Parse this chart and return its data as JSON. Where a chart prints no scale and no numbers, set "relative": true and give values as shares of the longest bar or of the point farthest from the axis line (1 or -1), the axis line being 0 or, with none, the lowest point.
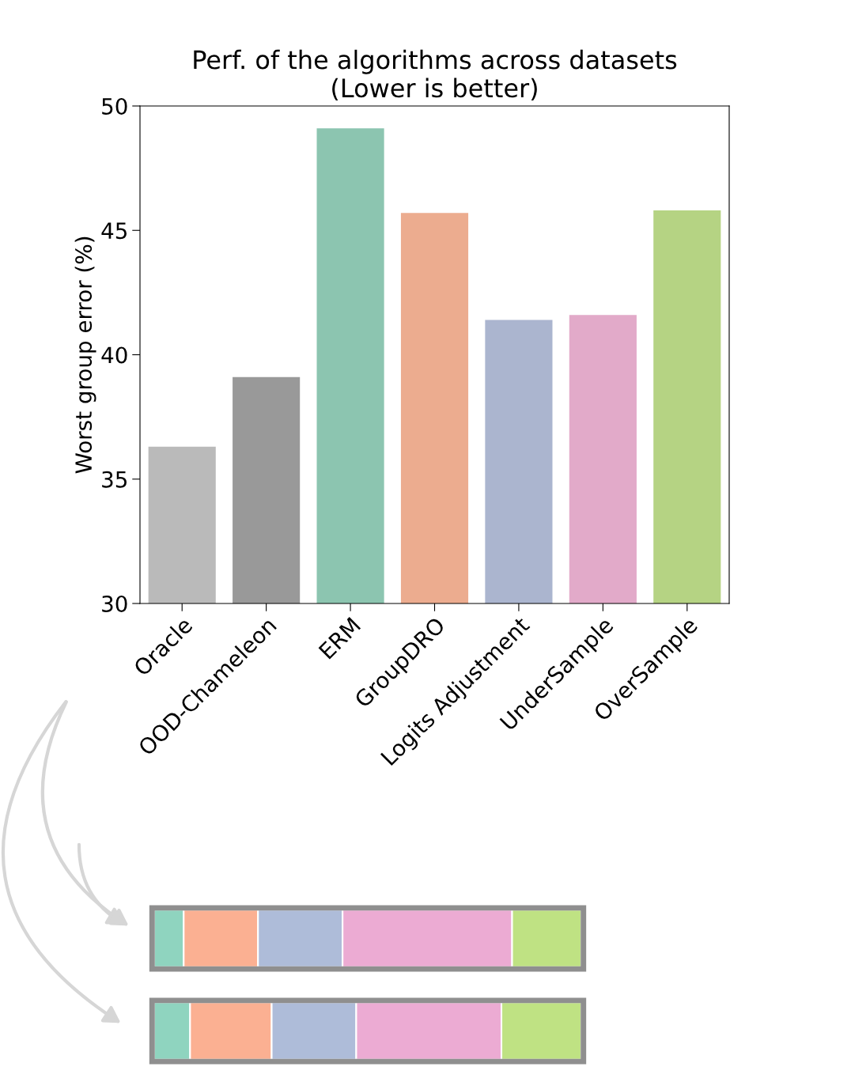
{
  "chart_data": [
    {
      "type": "bar",
      "title": "Perf. of the algorithms across datasets\n(Lower is better)",
      "ylabel": "Worst group error (%)",
      "categories": [
        "Oracle",
        "OOD-Chameleon",
        "ERM",
        "GroupDRO",
        "Logits Adjustment",
        "UnderSample",
        "OverSample"
      ],
      "values": [
        36.3,
        39.1,
        49.1,
        45.7,
        41.4,
        41.6,
        45.8
      ],
      "colors": [
        "#bababa",
        "#999999",
        "#8cc5b0",
        "#ecac8f",
        "#abb5cf",
        "#e2aac9",
        "#b5d383"
      ],
      "ylim": [
        30,
        50
      ],
      "yticks": [
        30,
        35,
        40,
        45,
        50
      ],
      "grid": false,
      "legend": false
    },
    {
      "type": "bar",
      "orientation": "horizontal",
      "stacked": true,
      "relative": true,
      "grid": false,
      "legend": false,
      "categories": [
        null,
        null
      ],
      "series": [
        {
          "color": "#8fd4bf",
          "values": [
            0.069,
            0.084
          ]
        },
        {
          "color": "#fbb092",
          "values": [
            0.174,
            0.191
          ]
        },
        {
          "color": "#aebcd9",
          "values": [
            0.198,
            0.198
          ]
        },
        {
          "color": "#ecabd3",
          "values": [
            0.397,
            0.34
          ]
        },
        {
          "color": "#bfe283",
          "values": [
            0.162,
            0.187
          ]
        }
      ]
    }
  ]
}
